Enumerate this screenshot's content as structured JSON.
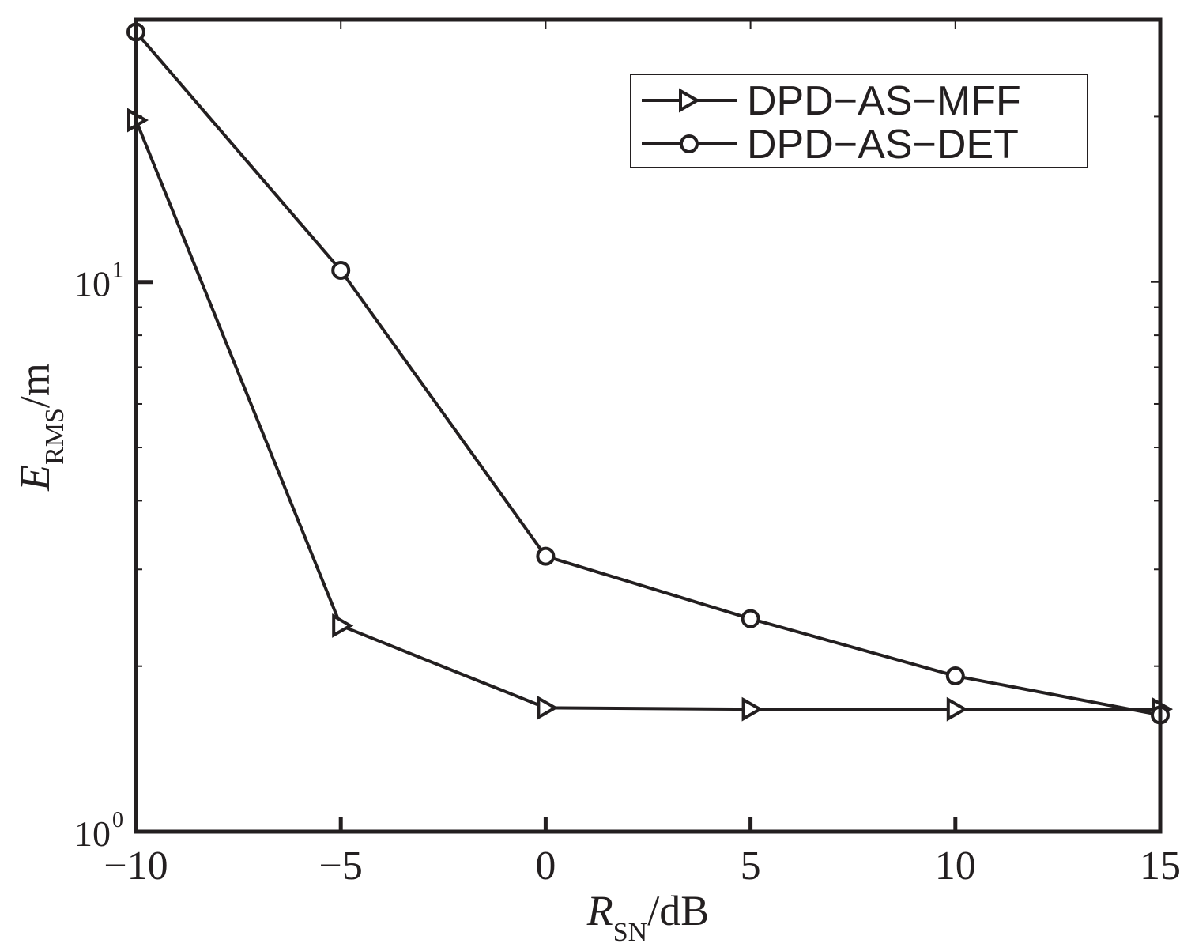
{
  "chart_data": {
    "type": "line",
    "title": "",
    "x": [
      -10,
      -5,
      0,
      5,
      10,
      15
    ],
    "x_tick_labels": [
      "−10",
      "−5",
      "0",
      "5",
      "10",
      "15"
    ],
    "xlim": [
      -10,
      15
    ],
    "xlabel": {
      "main": "R",
      "sub": "SN",
      "unit": "/dB"
    },
    "ylabel": {
      "main": "E",
      "sub": "RMS",
      "unit": "/m"
    },
    "yscale": "log",
    "ylim": [
      1,
      30
    ],
    "y_ticks": [
      {
        "value": 1,
        "base": "10",
        "exp": "0"
      },
      {
        "value": 10,
        "base": "10",
        "exp": "1"
      }
    ],
    "grid": false,
    "legend_position": "top-right",
    "series": [
      {
        "name": "DPD−AS−MFF",
        "marker": "triangle-right",
        "values": [
          19.7,
          2.37,
          1.68,
          1.67,
          1.67,
          1.67
        ]
      },
      {
        "name": "DPD−AS−DET",
        "marker": "circle",
        "values": [
          28.5,
          10.5,
          3.17,
          2.44,
          1.92,
          1.63
        ]
      }
    ],
    "colors": {
      "line": "#231f20",
      "axis": "#231f20",
      "background": "#ffffff"
    }
  }
}
